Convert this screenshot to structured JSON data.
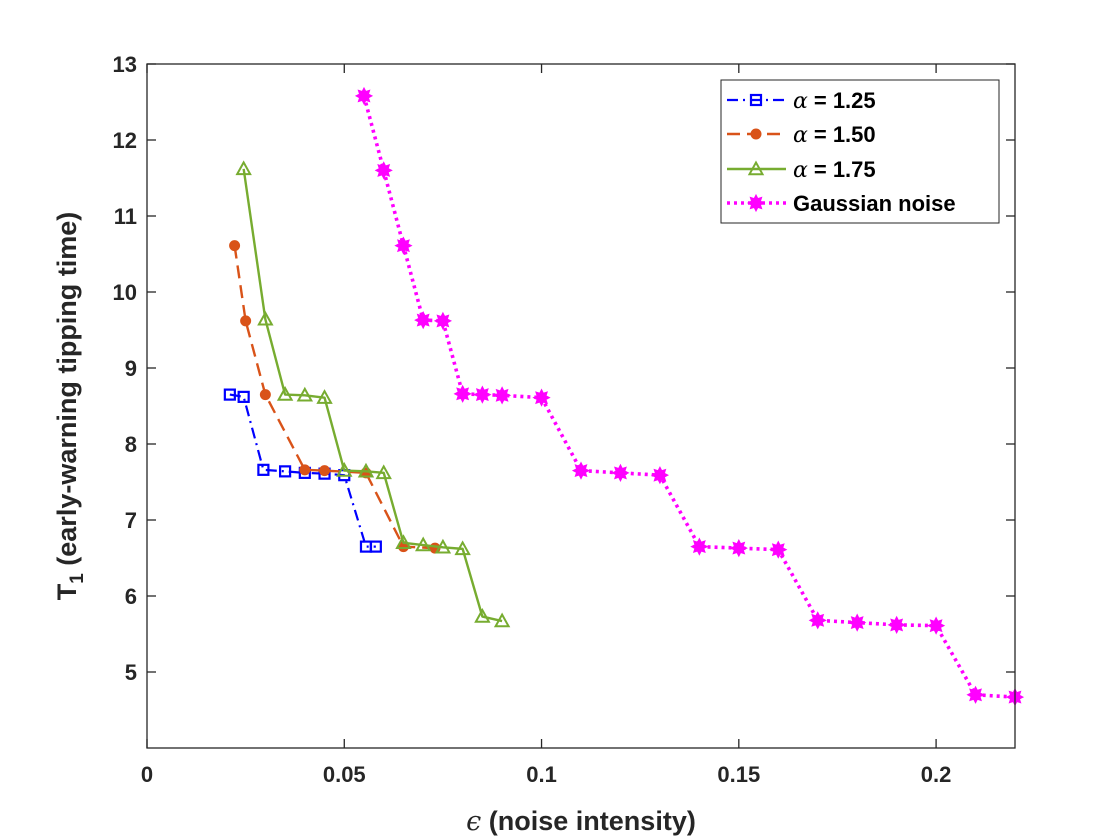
{
  "chart_data": {
    "type": "line",
    "xlabel_symbol": "ϵ",
    "xlabel": " (noise intensity)",
    "ylabel_main": "T",
    "ylabel_sub": "1",
    "ylabel": " (early-warning tipping time)",
    "xlim": [
      0,
      0.22
    ],
    "ylim": [
      4,
      13
    ],
    "xticks": [
      0,
      0.05,
      0.1,
      0.15,
      0.2
    ],
    "xtick_labels": [
      "0",
      "0.05",
      "0.1",
      "0.15",
      "0.2"
    ],
    "yticks": [
      5,
      6,
      7,
      8,
      9,
      10,
      11,
      12,
      13
    ],
    "ytick_labels": [
      "5",
      "6",
      "7",
      "8",
      "9",
      "10",
      "11",
      "12",
      "13"
    ],
    "grid": false,
    "legend_position": "top-right",
    "series": [
      {
        "name": "= 1.25",
        "symbol": "α",
        "color": "#0000ff",
        "line_style": "dashdot",
        "marker": "square-open",
        "x": [
          0.021,
          0.0245,
          0.0295,
          0.035,
          0.04,
          0.045,
          0.05,
          0.0555,
          0.058
        ],
        "y": [
          8.65,
          8.62,
          7.66,
          7.64,
          7.62,
          7.61,
          7.59,
          6.65,
          6.65
        ]
      },
      {
        "name": "= 1.50",
        "symbol": "α",
        "color": "#d95319",
        "line_style": "dashed",
        "marker": "circle-filled",
        "x": [
          0.0222,
          0.025,
          0.03,
          0.04,
          0.045,
          0.0555,
          0.065,
          0.073
        ],
        "y": [
          10.61,
          9.62,
          8.65,
          7.66,
          7.65,
          7.62,
          6.65,
          6.63
        ]
      },
      {
        "name": "= 1.75",
        "symbol": "α",
        "color": "#77ac30",
        "line_style": "solid",
        "marker": "triangle-open",
        "x": [
          0.0245,
          0.03,
          0.035,
          0.04,
          0.045,
          0.05,
          0.0555,
          0.06,
          0.065,
          0.07,
          0.075,
          0.08,
          0.085,
          0.09
        ],
        "y": [
          11.62,
          9.64,
          8.65,
          8.64,
          8.61,
          7.65,
          7.64,
          7.62,
          6.7,
          6.67,
          6.64,
          6.62,
          5.73,
          5.67
        ]
      },
      {
        "name": "Gaussian noise",
        "symbol": "",
        "color": "#ff00ff",
        "line_style": "dotted",
        "marker": "star-filled",
        "x": [
          0.055,
          0.06,
          0.065,
          0.07,
          0.075,
          0.08,
          0.085,
          0.09,
          0.1,
          0.11,
          0.12,
          0.13,
          0.14,
          0.15,
          0.16,
          0.17,
          0.18,
          0.19,
          0.2,
          0.21,
          0.22
        ],
        "y": [
          12.58,
          11.6,
          10.61,
          9.63,
          9.62,
          8.66,
          8.65,
          8.64,
          8.61,
          7.65,
          7.62,
          7.59,
          6.65,
          6.63,
          6.61,
          5.68,
          5.65,
          5.62,
          5.61,
          4.7,
          4.67
        ]
      }
    ]
  }
}
